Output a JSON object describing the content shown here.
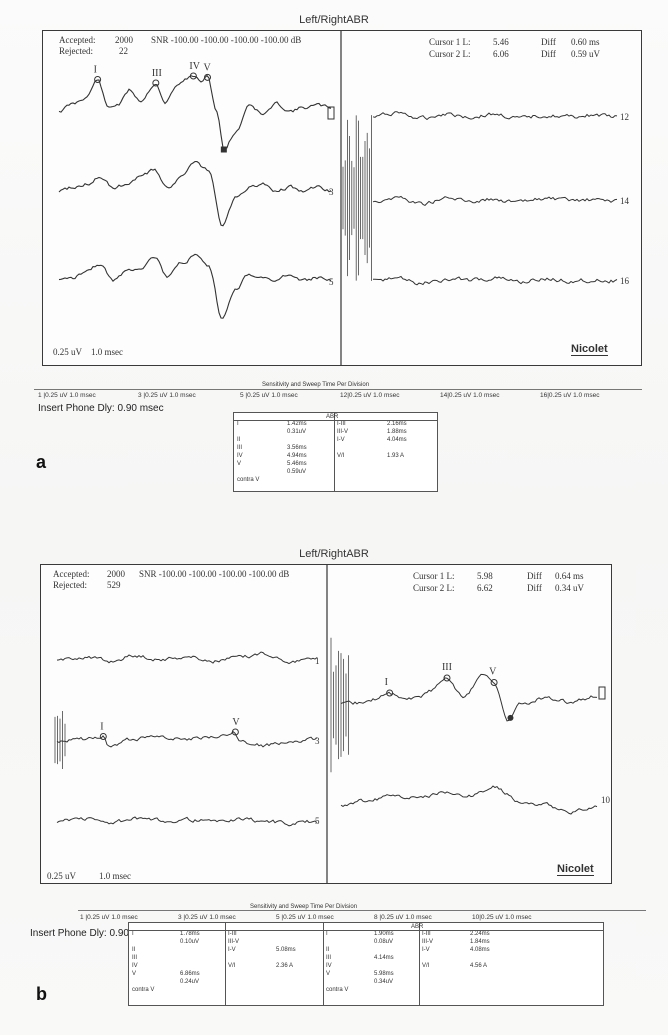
{
  "panels": [
    {
      "id": "a",
      "title": "Left/RightABR",
      "accepted_label": "Accepted:",
      "accepted_value": "2000",
      "rejected_label": "Rejected:",
      "rejected_value": "22",
      "snr_text": "SNR  -100.00 -100.00 -100.00 -100.00 dB",
      "cursor1_label": "Cursor 1 L:",
      "cursor1_value": "5.46",
      "cursor2_label": "Cursor 2 L:",
      "cursor2_value": "6.06",
      "diff1_label": "Diff",
      "diff1_value": "0.60 ms",
      "diff2_label": "Diff",
      "diff2_value": "0.59 uV",
      "scale_amp": "0.25 uV",
      "scale_time": "1.0 msec",
      "brand": "Nicolet",
      "sensitivity_title": "Sensitivity and Sweep Time Per Division",
      "sensitivity_items": [
        "1 |0.25 uV   1.0 msec",
        "3 |0.25 uV   1.0 msec",
        "5 |0.25 uV   1.0 msec",
        "12|0.25 uV   1.0 msec",
        "14|0.25 uV   1.0 msec",
        "16|0.25 uV   1.0 msec"
      ],
      "insert_phone": "Insert Phone Dly:  0.90 msec",
      "table_blocks": [
        {
          "header": "ABR",
          "rows": [
            [
              "I",
              "1.42ms",
              "I-III",
              "2.16ms"
            ],
            [
              "",
              "0.31uV",
              "III-V",
              "1.88ms"
            ],
            [
              "II",
              "",
              "I-V",
              "4.04ms"
            ],
            [
              "III",
              "3.56ms",
              "",
              ""
            ],
            [
              "IV",
              "4.94ms",
              "V/I",
              "1.93 A"
            ],
            [
              "V",
              "5.46ms",
              "",
              ""
            ],
            [
              "",
              "0.59uV",
              "",
              ""
            ],
            [
              "contra V",
              "",
              "",
              ""
            ]
          ]
        }
      ],
      "peak_labels": [
        "I",
        "III",
        "IV",
        "V"
      ],
      "trace_numbers": [
        "3",
        "5",
        "12",
        "14",
        "16"
      ],
      "panel_letter": "a"
    },
    {
      "id": "b",
      "title": "Left/RightABR",
      "accepted_label": "Accepted:",
      "accepted_value": "2000",
      "rejected_label": "Rejected:",
      "rejected_value": "529",
      "snr_text": "SNR  -100.00 -100.00 -100.00 -100.00 dB",
      "cursor1_label": "Cursor 1 L:",
      "cursor1_value": "5.98",
      "cursor2_label": "Cursor 2 L:",
      "cursor2_value": "6.62",
      "diff1_label": "Diff",
      "diff1_value": "0.64 ms",
      "diff2_label": "Diff",
      "diff2_value": "0.34 uV",
      "scale_amp": "0.25 uV",
      "scale_time": "1.0 msec",
      "brand": "Nicolet",
      "sensitivity_title": "Sensitivity and Sweep Time Per Division",
      "sensitivity_items": [
        "1 |0.25 uV   1.0 msec",
        "3 |0.25 uV   1.0 msec",
        "5 |0.25 uV   1.0 msec",
        "8 |0.25 uV   1.0 msec",
        "10|0.25 uV   1.0 msec"
      ],
      "insert_phone": "Insert Phone Dly:  0.90 msec",
      "table_blocks": [
        {
          "header": "",
          "rows": [
            [
              "I",
              "1.78ms",
              "I-III",
              ""
            ],
            [
              "",
              "0.10uV",
              "III-V",
              ""
            ],
            [
              "II",
              "",
              "I-V",
              "5.08ms"
            ],
            [
              "III",
              "",
              "",
              ""
            ],
            [
              "IV",
              "",
              "V/I",
              "2.36 A"
            ],
            [
              "V",
              "6.86ms",
              "",
              ""
            ],
            [
              "",
              "0.24uV",
              "",
              ""
            ],
            [
              "contra V",
              "",
              "",
              ""
            ]
          ]
        },
        {
          "header": "ABR",
          "rows": [
            [
              "I",
              "1.90ms",
              "I-III",
              "2.24ms"
            ],
            [
              "",
              "0.08uV",
              "III-V",
              "1.84ms"
            ],
            [
              "II",
              "",
              "I-V",
              "4.08ms"
            ],
            [
              "III",
              "4.14ms",
              "",
              ""
            ],
            [
              "IV",
              "",
              "V/I",
              "4.56 A"
            ],
            [
              "V",
              "5.98ms",
              "",
              ""
            ],
            [
              "",
              "0.34uV",
              "",
              ""
            ],
            [
              "contra V",
              "",
              "",
              ""
            ]
          ]
        }
      ],
      "peak_labels_left": [
        "I",
        "V"
      ],
      "peak_labels_right": [
        "I",
        "III",
        "V"
      ],
      "trace_numbers": [
        "1",
        "3",
        "5",
        "10"
      ],
      "panel_letter": "b"
    }
  ],
  "chart_data": [
    {
      "type": "line",
      "title": "Left/RightABR",
      "xlabel": "",
      "ylabel": "",
      "xlim": [
        0,
        10
      ],
      "x_units": "msec",
      "grid": false,
      "series": [
        {
          "name": "1",
          "x": [
            0,
            0.5,
            1,
            1.42,
            1.8,
            2.2,
            2.6,
            3.0,
            3.56,
            3.9,
            4.3,
            4.6,
            4.94,
            5.2,
            5.46,
            5.8,
            6.06,
            6.5,
            7,
            7.5,
            8,
            8.5,
            9,
            9.5,
            10
          ],
          "y": [
            0,
            0.1,
            0.2,
            0.45,
            0.05,
            0.1,
            0.3,
            0.15,
            0.4,
            0.1,
            0.35,
            0.45,
            0.5,
            0.42,
            0.48,
            0.0,
            -0.55,
            -0.3,
            0.1,
            -0.05,
            0.1,
            0.0,
            0.05,
            0.08,
            0.05
          ]
        },
        {
          "name": "3",
          "x": [
            0,
            0.5,
            1,
            1.5,
            2,
            2.5,
            3,
            3.5,
            4,
            4.5,
            5,
            5.5,
            6,
            6.5,
            7,
            7.5,
            8,
            8.5,
            9,
            9.5,
            10
          ],
          "y": [
            0,
            0.05,
            0.1,
            0.2,
            0.05,
            0.1,
            0.2,
            0.3,
            0.05,
            0.2,
            0.4,
            0.3,
            -0.5,
            -0.1,
            0.05,
            0.1,
            0.0,
            0.05,
            0.0,
            0.05,
            0.0
          ]
        },
        {
          "name": "5",
          "x": [
            0,
            0.5,
            1,
            1.5,
            2,
            2.5,
            3,
            3.5,
            4,
            4.5,
            5,
            5.5,
            6,
            6.5,
            7,
            7.5,
            8,
            8.5,
            9,
            9.5,
            10
          ],
          "y": [
            0,
            0.05,
            0.15,
            0.25,
            0.0,
            0.15,
            0.2,
            0.35,
            0.05,
            0.25,
            0.35,
            0.2,
            -0.55,
            -0.1,
            0.1,
            0.05,
            0.0,
            0.1,
            0.0,
            0.05,
            0.0
          ]
        },
        {
          "name": "12",
          "x": [
            0,
            1,
            2,
            3,
            4,
            5,
            6,
            7,
            8,
            9,
            10
          ],
          "y": [
            0.0,
            0.05,
            -0.02,
            0.04,
            0.0,
            0.03,
            -0.02,
            0.02,
            0.0,
            0.02,
            0.0
          ]
        },
        {
          "name": "14",
          "x": [
            0,
            1,
            2,
            3,
            4,
            5,
            6,
            7,
            8,
            9,
            10
          ],
          "y": [
            0.0,
            0.04,
            -0.03,
            0.03,
            0.0,
            0.02,
            -0.02,
            0.03,
            0.0,
            0.01,
            0.0
          ]
        },
        {
          "name": "16",
          "x": [
            0,
            1,
            2,
            3,
            4,
            5,
            6,
            7,
            8,
            9,
            10
          ],
          "y": [
            0.0,
            0.03,
            -0.02,
            0.02,
            0.01,
            0.03,
            -0.01,
            0.02,
            0.0,
            0.01,
            0.0
          ]
        }
      ],
      "peaks": [
        {
          "label": "I",
          "x": 1.42,
          "y": 0.31
        },
        {
          "label": "III",
          "x": 3.56
        },
        {
          "label": "IV",
          "x": 4.94
        },
        {
          "label": "V",
          "x": 5.46,
          "y": 0.59
        }
      ]
    },
    {
      "type": "line",
      "title": "Left/RightABR",
      "xlabel": "",
      "ylabel": "",
      "xlim": [
        0,
        10
      ],
      "x_units": "msec",
      "grid": false,
      "series": [
        {
          "name": "1",
          "x": [
            0,
            1,
            2,
            3,
            4,
            5,
            6,
            7,
            8,
            9,
            10
          ],
          "y": [
            0.0,
            0.05,
            0.0,
            0.06,
            0.02,
            0.05,
            0.0,
            0.04,
            0.08,
            0.0,
            0.02
          ]
        },
        {
          "name": "3",
          "x": [
            0,
            1,
            1.78,
            2,
            3,
            4,
            5,
            6,
            6.86,
            7,
            8,
            9,
            10
          ],
          "y": [
            0.0,
            0.02,
            0.05,
            -0.05,
            0.02,
            0.05,
            0.02,
            0.04,
            0.1,
            0.0,
            -0.05,
            0.0,
            0.02
          ]
        },
        {
          "name": "5",
          "x": [
            0,
            1,
            2,
            3,
            4,
            5,
            6,
            7,
            8,
            9,
            10
          ],
          "y": [
            0.0,
            0.03,
            -0.02,
            0.02,
            0.0,
            0.02,
            -0.01,
            0.02,
            0.0,
            -0.03,
            0.0
          ]
        },
        {
          "name": "8",
          "x": [
            0,
            1,
            1.9,
            2.5,
            3,
            3.5,
            4.14,
            4.8,
            5.5,
            5.98,
            6.5,
            7,
            8,
            9,
            10
          ],
          "y": [
            0.0,
            0.02,
            0.08,
            0.04,
            0.05,
            0.1,
            0.18,
            0.05,
            0.2,
            0.15,
            -0.1,
            0.0,
            0.05,
            0.02,
            0.06
          ]
        },
        {
          "name": "10",
          "x": [
            0,
            1,
            2,
            3,
            4,
            5,
            6,
            7,
            8,
            9,
            10
          ],
          "y": [
            0.0,
            0.03,
            0.06,
            0.05,
            0.08,
            0.06,
            0.12,
            0.02,
            0.0,
            -0.05,
            0.0
          ]
        }
      ],
      "peaks": [
        {
          "label": "I",
          "x": 1.9,
          "y": 0.08
        },
        {
          "label": "III",
          "x": 4.14
        },
        {
          "label": "V",
          "x": 5.98,
          "y": 0.34
        }
      ]
    }
  ]
}
